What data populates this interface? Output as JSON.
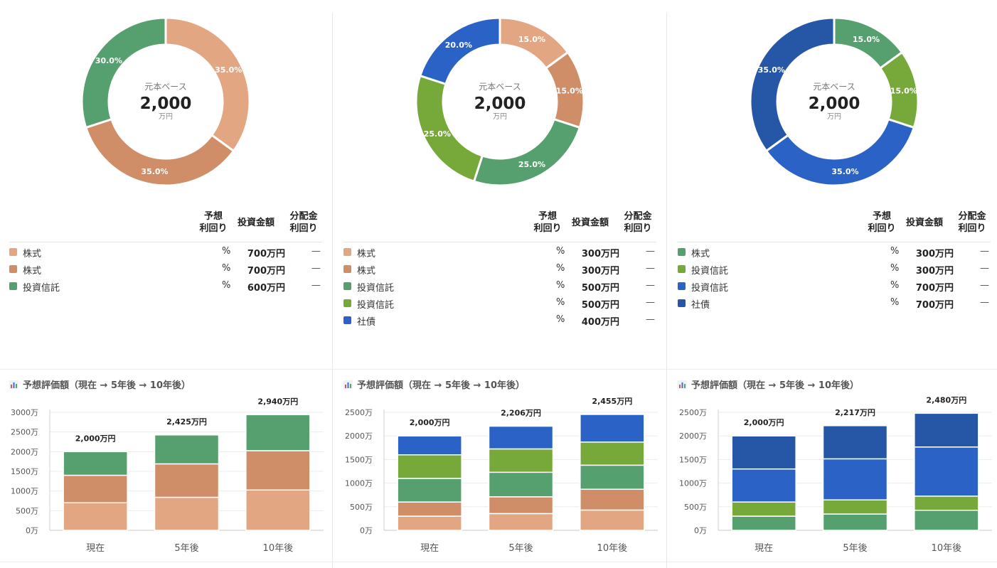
{
  "center": {
    "label": "元本ベース",
    "value": "2,000",
    "unit": "万円"
  },
  "table_headers": {
    "yield": [
      "予想",
      "利回り"
    ],
    "amount": "投資金額",
    "dividend": [
      "分配金",
      "利回り"
    ]
  },
  "chart_title": "予想評価額（現在 → 5年後 → 10年後）",
  "colors": {
    "peach": "#e2a682",
    "terracotta": "#cf8e67",
    "green": "#55a06e",
    "olive": "#76a93a",
    "blue": "#2b62c5",
    "navy": "#2656a6"
  },
  "portfolios": [
    {
      "holdings": [
        {
          "name": "株式",
          "pct_symbol": "%",
          "amount": "700万円",
          "dividend": "—",
          "color": "#e2a682",
          "share": 35.0,
          "share_label": "35.0%"
        },
        {
          "name": "株式",
          "pct_symbol": "%",
          "amount": "700万円",
          "dividend": "—",
          "color": "#cf8e67",
          "share": 35.0,
          "share_label": "35.0%"
        },
        {
          "name": "投資信託",
          "pct_symbol": "%",
          "amount": "600万円",
          "dividend": "—",
          "color": "#55a06e",
          "share": 30.0,
          "share_label": "30.0%"
        }
      ]
    },
    {
      "holdings": [
        {
          "name": "株式",
          "pct_symbol": "%",
          "amount": "300万円",
          "dividend": "—",
          "color": "#e2a682",
          "share": 15.0,
          "share_label": "15.0%"
        },
        {
          "name": "株式",
          "pct_symbol": "%",
          "amount": "300万円",
          "dividend": "—",
          "color": "#cf8e67",
          "share": 15.0,
          "share_label": "15.0%"
        },
        {
          "name": "投資信託",
          "pct_symbol": "%",
          "amount": "500万円",
          "dividend": "—",
          "color": "#55a06e",
          "share": 25.0,
          "share_label": "25.0%"
        },
        {
          "name": "投資信託",
          "pct_symbol": "%",
          "amount": "500万円",
          "dividend": "—",
          "color": "#76a93a",
          "share": 25.0,
          "share_label": "25.0%"
        },
        {
          "name": "社債",
          "pct_symbol": "%",
          "amount": "400万円",
          "dividend": "—",
          "color": "#2b62c5",
          "share": 20.0,
          "share_label": "20.0%"
        }
      ]
    },
    {
      "holdings": [
        {
          "name": "株式",
          "pct_symbol": "%",
          "amount": "300万円",
          "dividend": "—",
          "color": "#55a06e",
          "share": 15.0,
          "share_label": "15.0%"
        },
        {
          "name": "投資信託",
          "pct_symbol": "%",
          "amount": "300万円",
          "dividend": "—",
          "color": "#76a93a",
          "share": 15.0,
          "share_label": "15.0%"
        },
        {
          "name": "投資信託",
          "pct_symbol": "%",
          "amount": "700万円",
          "dividend": "—",
          "color": "#2b62c5",
          "share": 35.0,
          "share_label": "35.0%"
        },
        {
          "name": "社債",
          "pct_symbol": "%",
          "amount": "700万円",
          "dividend": "—",
          "color": "#2656a6",
          "share": 35.0,
          "share_label": "35.0%"
        }
      ]
    }
  ],
  "chart_data": [
    {
      "type": "pie",
      "title": "元本ベース 2,000 万円",
      "labels": [
        "株式",
        "株式",
        "投資信託"
      ],
      "values": [
        35.0,
        35.0,
        30.0
      ],
      "colors": [
        "#e2a682",
        "#cf8e67",
        "#55a06e"
      ]
    },
    {
      "type": "pie",
      "title": "元本ベース 2,000 万円",
      "labels": [
        "株式",
        "株式",
        "投資信託",
        "投資信託",
        "社債"
      ],
      "values": [
        15.0,
        15.0,
        25.0,
        25.0,
        20.0
      ],
      "colors": [
        "#e2a682",
        "#cf8e67",
        "#55a06e",
        "#76a93a",
        "#2b62c5"
      ]
    },
    {
      "type": "pie",
      "title": "元本ベース 2,000 万円",
      "labels": [
        "株式",
        "投資信託",
        "投資信託",
        "社債"
      ],
      "values": [
        15.0,
        15.0,
        35.0,
        35.0
      ],
      "colors": [
        "#55a06e",
        "#76a93a",
        "#2b62c5",
        "#2656a6"
      ]
    },
    {
      "type": "bar",
      "stacked": true,
      "title": "予想評価額（現在 → 5年後 → 10年後）",
      "categories": [
        "現在",
        "5年後",
        "10年後"
      ],
      "ylim": [
        0,
        3000
      ],
      "yticks": [
        0,
        500,
        1000,
        1500,
        2000,
        2500,
        3000
      ],
      "ytick_labels": [
        "0万",
        "500万",
        "1000万",
        "1500万",
        "2000万",
        "2500万",
        "3000万"
      ],
      "totals": [
        2000,
        2425,
        2940
      ],
      "total_labels": [
        "2,000万円",
        "2,425万円",
        "2,940万円"
      ],
      "series": [
        {
          "name": "株式",
          "color": "#e2a682",
          "values": [
            700,
            840,
            1025
          ]
        },
        {
          "name": "株式",
          "color": "#cf8e67",
          "values": [
            700,
            850,
            1000
          ]
        },
        {
          "name": "投資信託",
          "color": "#55a06e",
          "values": [
            600,
            735,
            915
          ]
        }
      ]
    },
    {
      "type": "bar",
      "stacked": true,
      "title": "予想評価額（現在 → 5年後 → 10年後）",
      "categories": [
        "現在",
        "5年後",
        "10年後"
      ],
      "ylim": [
        0,
        2500
      ],
      "yticks": [
        0,
        500,
        1000,
        1500,
        2000,
        2500
      ],
      "ytick_labels": [
        "0万",
        "500万",
        "1000万",
        "1500万",
        "2000万",
        "2500万"
      ],
      "totals": [
        2000,
        2206,
        2455
      ],
      "total_labels": [
        "2,000万円",
        "2,206万円",
        "2,455万円"
      ],
      "series": [
        {
          "name": "株式",
          "color": "#e2a682",
          "values": [
            300,
            355,
            430
          ]
        },
        {
          "name": "株式",
          "color": "#cf8e67",
          "values": [
            300,
            355,
            440
          ]
        },
        {
          "name": "投資信託",
          "color": "#55a06e",
          "values": [
            500,
            520,
            510
          ]
        },
        {
          "name": "投資信託",
          "color": "#76a93a",
          "values": [
            500,
            495,
            490
          ]
        },
        {
          "name": "社債",
          "color": "#2b62c5",
          "values": [
            400,
            481,
            585
          ]
        }
      ]
    },
    {
      "type": "bar",
      "stacked": true,
      "title": "予想評価額（現在 → 5年後 → 10年後）",
      "categories": [
        "現在",
        "5年後",
        "10年後"
      ],
      "ylim": [
        0,
        2500
      ],
      "yticks": [
        0,
        500,
        1000,
        1500,
        2000,
        2500
      ],
      "ytick_labels": [
        "0万",
        "500万",
        "1000万",
        "1500万",
        "2000万",
        "2500万"
      ],
      "totals": [
        2000,
        2217,
        2480
      ],
      "total_labels": [
        "2,000万円",
        "2,217万円",
        "2,480万円"
      ],
      "series": [
        {
          "name": "株式",
          "color": "#55a06e",
          "values": [
            300,
            345,
            425
          ]
        },
        {
          "name": "投資信託",
          "color": "#76a93a",
          "values": [
            300,
            300,
            300
          ]
        },
        {
          "name": "投資信託",
          "color": "#2b62c5",
          "values": [
            700,
            870,
            1040
          ]
        },
        {
          "name": "社債",
          "color": "#2656a6",
          "values": [
            700,
            702,
            715
          ]
        }
      ]
    }
  ]
}
